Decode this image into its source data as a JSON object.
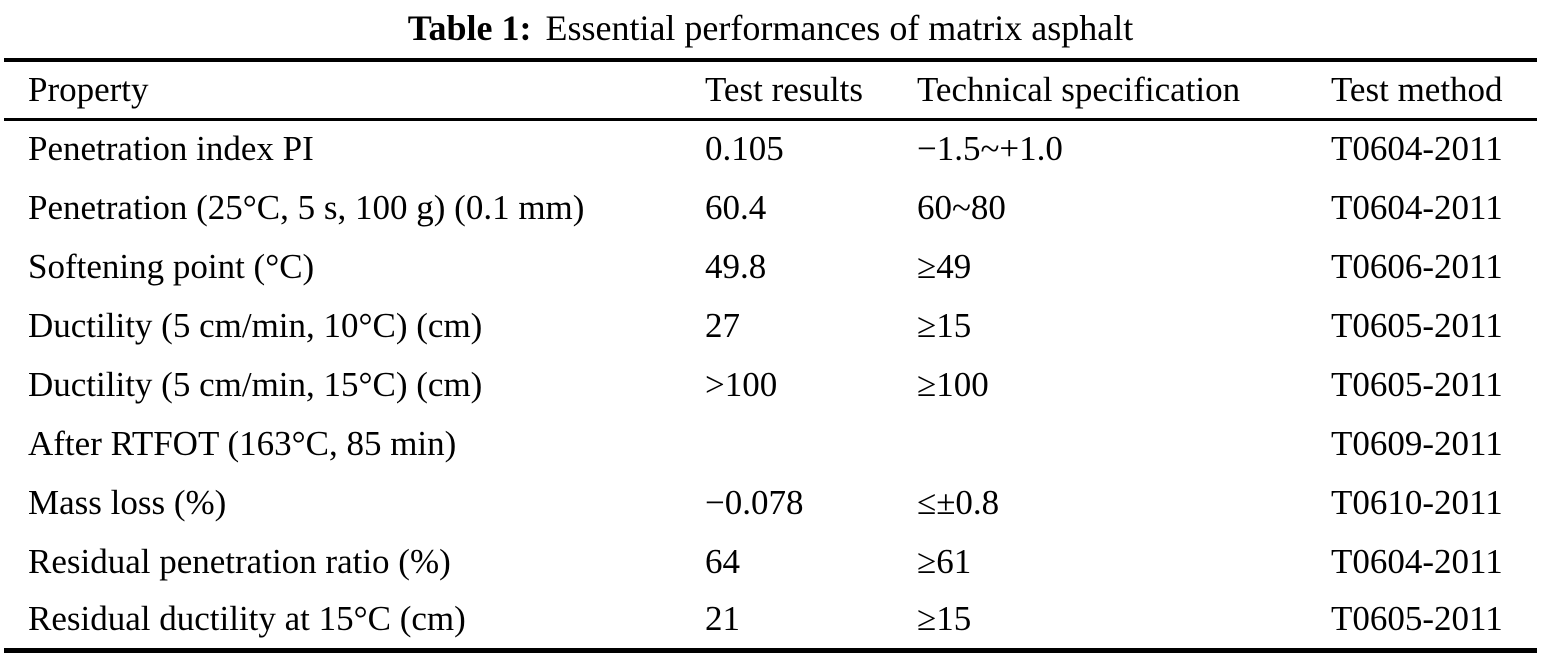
{
  "caption": {
    "label": "Table 1:",
    "text": "Essential performances of matrix asphalt"
  },
  "table": {
    "columns": {
      "property": "Property",
      "result": "Test results",
      "spec": "Technical specification",
      "method": "Test method"
    },
    "rows": [
      {
        "property": "Penetration index PI",
        "result": "0.105",
        "spec": "−1.5~+1.0",
        "method": "T0604-2011"
      },
      {
        "property": "Penetration (25°C, 5 s, 100 g) (0.1 mm)",
        "result": "60.4",
        "spec": "60~80",
        "method": "T0604-2011"
      },
      {
        "property": "Softening point (°C)",
        "result": "49.8",
        "spec": "≥49",
        "method": "T0606-2011"
      },
      {
        "property": "Ductility (5 cm/min, 10°C) (cm)",
        "result": "27",
        "spec": "≥15",
        "method": "T0605-2011"
      },
      {
        "property": "Ductility (5 cm/min, 15°C) (cm)",
        "result": ">100",
        "spec": "≥100",
        "method": "T0605-2011"
      },
      {
        "property": "After RTFOT (163°C, 85 min)",
        "result": "",
        "spec": "",
        "method": "T0609-2011"
      },
      {
        "property": "Mass loss (%)",
        "result": "−0.078",
        "spec": "≤±0.8",
        "method": "T0610-2011"
      },
      {
        "property": "Residual penetration ratio (%)",
        "result": "64",
        "spec": "≥61",
        "method": "T0604-2011"
      },
      {
        "property": "Residual ductility at 15°C (cm)",
        "result": "21",
        "spec": "≥15",
        "method": "T0605-2011"
      }
    ]
  }
}
